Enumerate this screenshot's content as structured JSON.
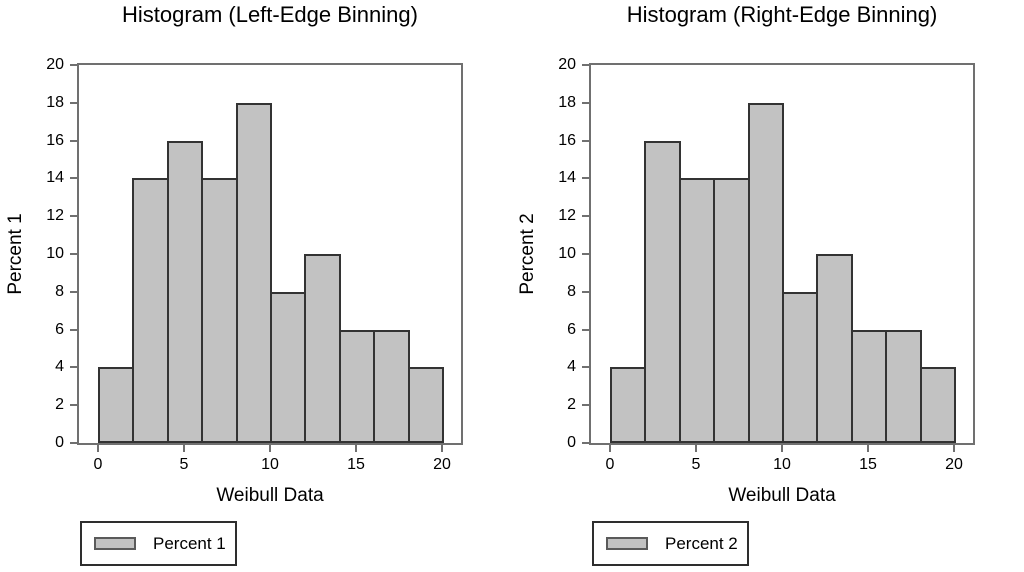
{
  "colors": {
    "bar_fill": "#c2c2c2",
    "bar_border": "#333333",
    "axis_line": "#707070",
    "text": "#000000",
    "legend_border": "#2e2e2e",
    "swatch_border": "#5a5a5a",
    "background": "#ffffff"
  },
  "chart_data": [
    {
      "type": "bar",
      "title": "Histogram (Left-Edge Binning)",
      "xlabel": "Weibull Data",
      "ylabel": "Percent 1",
      "legend_label": "Percent 1",
      "legend_position": "bottom-left",
      "bin_start": 0,
      "bin_width": 2,
      "bin_edges": [
        0,
        2,
        4,
        6,
        8,
        10,
        12,
        14,
        16,
        18,
        20
      ],
      "values": [
        4,
        14,
        16,
        14,
        18,
        8,
        10,
        6,
        6,
        4
      ],
      "x_ticks": [
        0,
        5,
        10,
        15,
        20
      ],
      "y_ticks": [
        0,
        2,
        4,
        6,
        8,
        10,
        12,
        14,
        16,
        18,
        20
      ],
      "xlim": [
        -1.1,
        21.1
      ],
      "ylim": [
        0,
        20
      ],
      "grid": false
    },
    {
      "type": "bar",
      "title": "Histogram (Right-Edge Binning)",
      "xlabel": "Weibull Data",
      "ylabel": "Percent 2",
      "legend_label": "Percent 2",
      "legend_position": "bottom-left",
      "bin_start": 0,
      "bin_width": 2,
      "bin_edges": [
        0,
        2,
        4,
        6,
        8,
        10,
        12,
        14,
        16,
        18,
        20
      ],
      "values": [
        4,
        16,
        14,
        14,
        18,
        8,
        10,
        6,
        6,
        4
      ],
      "x_ticks": [
        0,
        5,
        10,
        15,
        20
      ],
      "y_ticks": [
        0,
        2,
        4,
        6,
        8,
        10,
        12,
        14,
        16,
        18,
        20
      ],
      "xlim": [
        -1.1,
        21.1
      ],
      "ylim": [
        0,
        20
      ],
      "grid": false
    }
  ]
}
